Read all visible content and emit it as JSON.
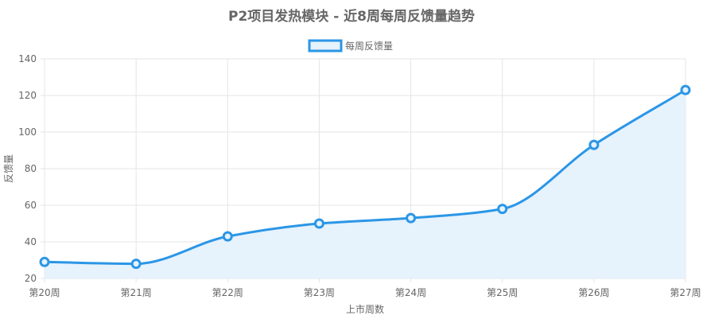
{
  "chart_data": {
    "type": "line",
    "title": "P2项目发热模块 - 近8周每周反馈量趋势",
    "xlabel": "上市周数",
    "ylabel": "反馈量",
    "categories": [
      "第20周",
      "第21周",
      "第22周",
      "第23周",
      "第24周",
      "第25周",
      "第26周",
      "第27周"
    ],
    "series": [
      {
        "name": "每周反馈量",
        "values": [
          29,
          28,
          43,
          50,
          53,
          58,
          93,
          123
        ],
        "color": "#2b96e6",
        "fill": "#e6f2fc"
      }
    ],
    "ylim": [
      20,
      140
    ],
    "yticks": [
      20,
      40,
      60,
      80,
      100,
      120,
      140
    ],
    "grid": true,
    "legend": "top-center",
    "smooth": true,
    "area": true
  }
}
